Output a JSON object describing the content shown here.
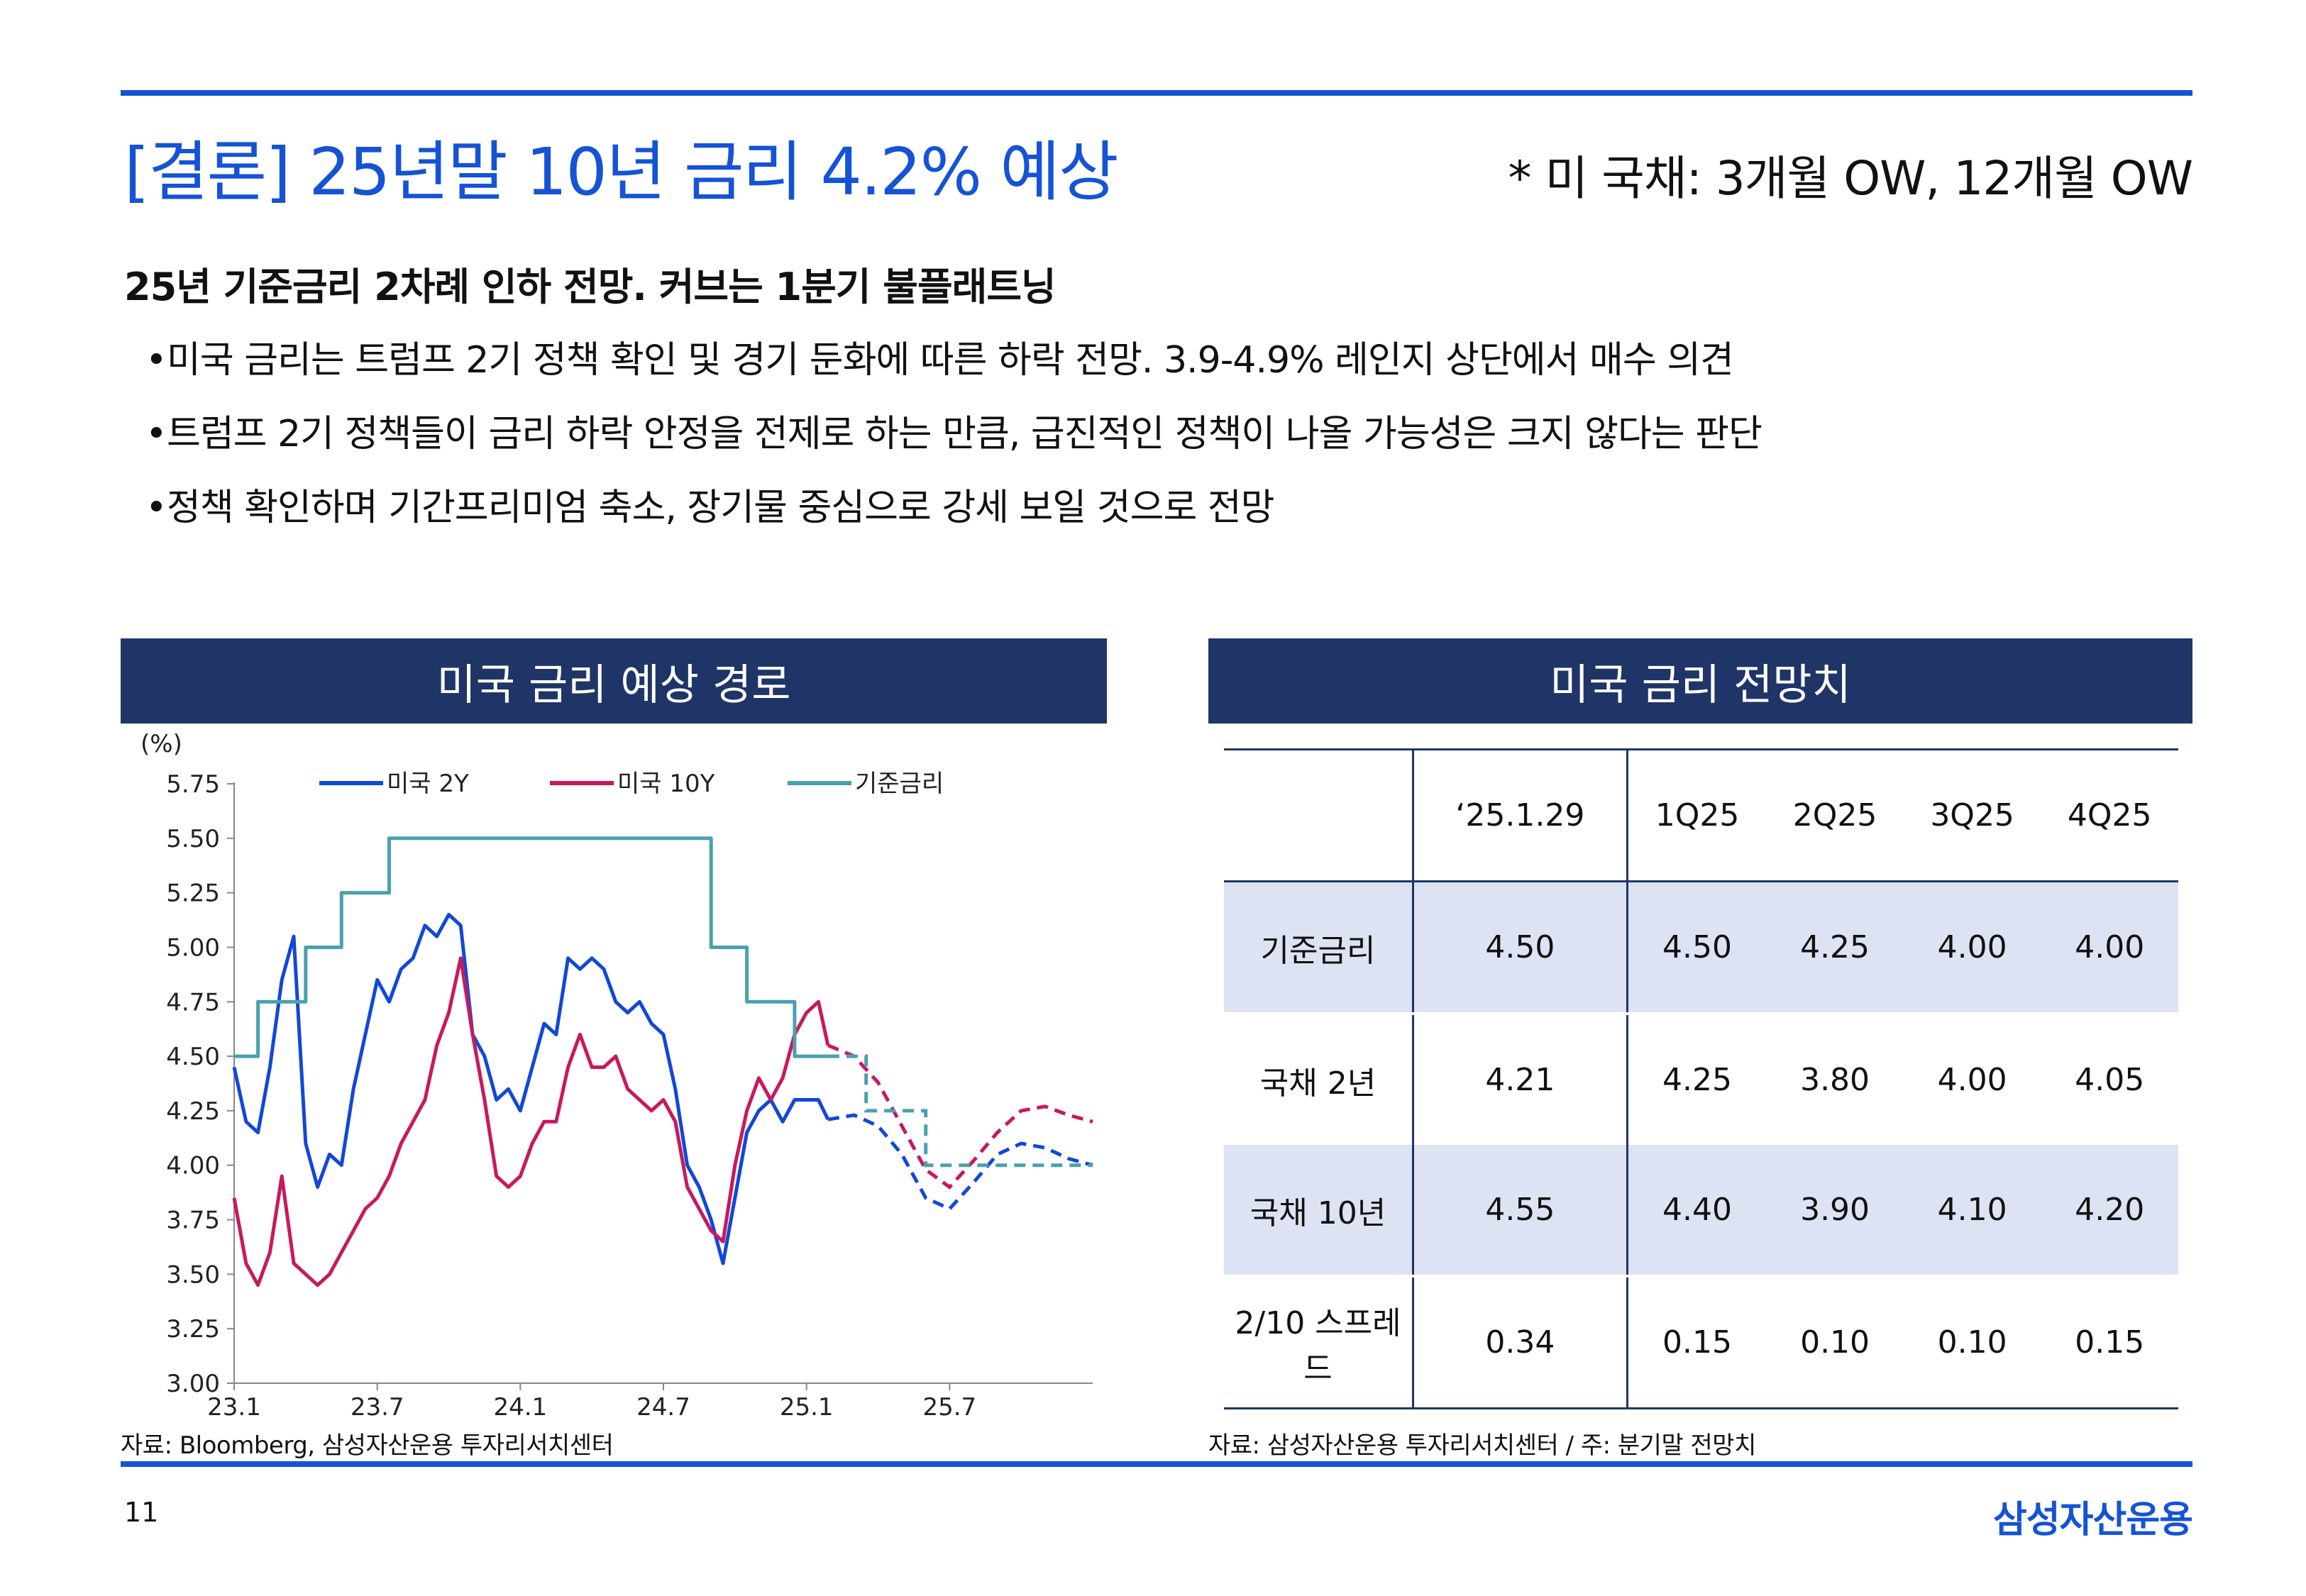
{
  "header": {
    "title": "[결론] 25년말 10년 금리 4.2% 예상",
    "note": "* 미 국채: 3개월 OW, 12개월 OW"
  },
  "summary": {
    "subtitle": "25년 기준금리 2차례 인하 전망. 커브는 1분기 불플래트닝",
    "bullets": [
      "미국 금리는 트럼프 2기 정책 확인 및 경기 둔화에 따른 하락 전망. 3.9-4.9% 레인지 상단에서 매수 의견",
      "트럼프 2기 정책들이 금리 하락 안정을 전제로 하는 만큼, 급진적인 정책이 나올 가능성은 크지 않다는 판단",
      "정책 확인하며 기간프리미엄 축소, 장기물 중심으로 강세 보일 것으로 전망"
    ],
    "bullet_symbol": "•"
  },
  "left_panel": {
    "header": "미국 금리 예상 경로",
    "source": "자료: Bloomberg, 삼성자산운용 투자리서치센터"
  },
  "right_panel": {
    "header": "미국 금리 전망치",
    "source": "자료: 삼성자산운용 투자리서치센터 / 주: 분기말 전망치",
    "table": {
      "columns": [
        "‘25.1.29",
        "1Q25",
        "2Q25",
        "3Q25",
        "4Q25"
      ],
      "rows": [
        {
          "label": "기준금리",
          "values": [
            "4.50",
            "4.50",
            "4.25",
            "4.00",
            "4.00"
          ]
        },
        {
          "label": "국채 2년",
          "values": [
            "4.21",
            "4.25",
            "3.80",
            "4.00",
            "4.05"
          ]
        },
        {
          "label": "국채 10년",
          "values": [
            "4.55",
            "4.40",
            "3.90",
            "4.10",
            "4.20"
          ]
        },
        {
          "label": "2/10 스프레드",
          "values": [
            "0.34",
            "0.15",
            "0.10",
            "0.10",
            "0.15"
          ]
        }
      ]
    }
  },
  "footer": {
    "page_number": "11",
    "logo": "삼성자산운용"
  },
  "colors": {
    "accent": "#1553d6",
    "navy": "#1f3567",
    "us2y": "#1248d8",
    "us10y": "#c8195e",
    "policy": "#4aa0b0",
    "shade": "#dde3f2"
  },
  "chart_data": {
    "type": "line",
    "title": "미국 금리 예상 경로",
    "ylabel": "(%)",
    "xlabel": "",
    "ylim": [
      3.0,
      5.75
    ],
    "yticks": [
      "5.75",
      "5.50",
      "5.25",
      "5.00",
      "4.75",
      "4.50",
      "4.25",
      "4.00",
      "3.75",
      "3.50",
      "3.25",
      "3.00"
    ],
    "x_tick_labels": [
      "23.1",
      "23.7",
      "24.1",
      "24.7",
      "25.1",
      "25.7"
    ],
    "x_tick_months": [
      0,
      6,
      12,
      18,
      24,
      30
    ],
    "xlim_months": [
      0,
      36
    ],
    "forecast_start_month": 24.9,
    "series": [
      {
        "name": "미국 2Y",
        "style": "solid-then-dashed",
        "actual": [
          [
            0,
            4.45
          ],
          [
            0.5,
            4.2
          ],
          [
            1,
            4.15
          ],
          [
            1.5,
            4.45
          ],
          [
            2,
            4.85
          ],
          [
            2.5,
            5.05
          ],
          [
            3,
            4.1
          ],
          [
            3.5,
            3.9
          ],
          [
            4,
            4.05
          ],
          [
            4.5,
            4.0
          ],
          [
            5,
            4.35
          ],
          [
            5.5,
            4.6
          ],
          [
            6,
            4.85
          ],
          [
            6.5,
            4.75
          ],
          [
            7,
            4.9
          ],
          [
            7.5,
            4.95
          ],
          [
            8,
            5.1
          ],
          [
            8.5,
            5.05
          ],
          [
            9,
            5.15
          ],
          [
            9.5,
            5.1
          ],
          [
            10,
            4.6
          ],
          [
            10.5,
            4.5
          ],
          [
            11,
            4.3
          ],
          [
            11.5,
            4.35
          ],
          [
            12,
            4.25
          ],
          [
            12.5,
            4.45
          ],
          [
            13,
            4.65
          ],
          [
            13.5,
            4.6
          ],
          [
            14,
            4.95
          ],
          [
            14.5,
            4.9
          ],
          [
            15,
            4.95
          ],
          [
            15.5,
            4.9
          ],
          [
            16,
            4.75
          ],
          [
            16.5,
            4.7
          ],
          [
            17,
            4.75
          ],
          [
            17.5,
            4.65
          ],
          [
            18,
            4.6
          ],
          [
            18.5,
            4.35
          ],
          [
            19,
            4.0
          ],
          [
            19.5,
            3.9
          ],
          [
            20,
            3.75
          ],
          [
            20.5,
            3.55
          ],
          [
            21,
            3.85
          ],
          [
            21.5,
            4.15
          ],
          [
            22,
            4.25
          ],
          [
            22.5,
            4.3
          ],
          [
            23,
            4.2
          ],
          [
            23.5,
            4.3
          ],
          [
            24,
            4.3
          ],
          [
            24.5,
            4.3
          ],
          [
            24.9,
            4.21
          ]
        ],
        "forecast": [
          [
            24.9,
            4.21
          ],
          [
            26,
            4.23
          ],
          [
            27,
            4.18
          ],
          [
            28,
            4.05
          ],
          [
            29,
            3.85
          ],
          [
            30,
            3.8
          ],
          [
            31,
            3.92
          ],
          [
            32,
            4.05
          ],
          [
            33,
            4.1
          ],
          [
            34,
            4.08
          ],
          [
            35,
            4.03
          ],
          [
            36,
            4.0
          ]
        ]
      },
      {
        "name": "미국 10Y",
        "style": "solid-then-dashed",
        "actual": [
          [
            0,
            3.85
          ],
          [
            0.5,
            3.55
          ],
          [
            1,
            3.45
          ],
          [
            1.5,
            3.6
          ],
          [
            2,
            3.95
          ],
          [
            2.5,
            3.55
          ],
          [
            3,
            3.5
          ],
          [
            3.5,
            3.45
          ],
          [
            4,
            3.5
          ],
          [
            4.5,
            3.6
          ],
          [
            5,
            3.7
          ],
          [
            5.5,
            3.8
          ],
          [
            6,
            3.85
          ],
          [
            6.5,
            3.95
          ],
          [
            7,
            4.1
          ],
          [
            7.5,
            4.2
          ],
          [
            8,
            4.3
          ],
          [
            8.5,
            4.55
          ],
          [
            9,
            4.7
          ],
          [
            9.5,
            4.95
          ],
          [
            10,
            4.6
          ],
          [
            10.5,
            4.3
          ],
          [
            11,
            3.95
          ],
          [
            11.5,
            3.9
          ],
          [
            12,
            3.95
          ],
          [
            12.5,
            4.1
          ],
          [
            13,
            4.2
          ],
          [
            13.5,
            4.2
          ],
          [
            14,
            4.45
          ],
          [
            14.5,
            4.6
          ],
          [
            15,
            4.45
          ],
          [
            15.5,
            4.45
          ],
          [
            16,
            4.5
          ],
          [
            16.5,
            4.35
          ],
          [
            17,
            4.3
          ],
          [
            17.5,
            4.25
          ],
          [
            18,
            4.3
          ],
          [
            18.5,
            4.2
          ],
          [
            19,
            3.9
          ],
          [
            19.5,
            3.8
          ],
          [
            20,
            3.7
          ],
          [
            20.5,
            3.65
          ],
          [
            21,
            4.0
          ],
          [
            21.5,
            4.25
          ],
          [
            22,
            4.4
          ],
          [
            22.5,
            4.3
          ],
          [
            23,
            4.4
          ],
          [
            23.5,
            4.6
          ],
          [
            24,
            4.7
          ],
          [
            24.5,
            4.75
          ],
          [
            24.9,
            4.55
          ]
        ],
        "forecast": [
          [
            24.9,
            4.55
          ],
          [
            26,
            4.5
          ],
          [
            27,
            4.38
          ],
          [
            28,
            4.18
          ],
          [
            29,
            3.98
          ],
          [
            30,
            3.9
          ],
          [
            31,
            4.02
          ],
          [
            32,
            4.15
          ],
          [
            33,
            4.25
          ],
          [
            34,
            4.27
          ],
          [
            35,
            4.23
          ],
          [
            36,
            4.2
          ]
        ]
      },
      {
        "name": "기준금리",
        "style": "solid-then-dashed",
        "actual": [
          [
            0,
            4.5
          ],
          [
            1,
            4.5
          ],
          [
            1,
            4.75
          ],
          [
            3,
            4.75
          ],
          [
            3,
            5.0
          ],
          [
            4.5,
            5.0
          ],
          [
            4.5,
            5.25
          ],
          [
            6.5,
            5.25
          ],
          [
            6.5,
            5.5
          ],
          [
            20,
            5.5
          ],
          [
            20,
            5.0
          ],
          [
            21.5,
            5.0
          ],
          [
            21.5,
            4.75
          ],
          [
            23.5,
            4.75
          ],
          [
            23.5,
            4.5
          ],
          [
            24.9,
            4.5
          ]
        ],
        "forecast": [
          [
            24.9,
            4.5
          ],
          [
            26.5,
            4.5
          ],
          [
            26.5,
            4.25
          ],
          [
            29,
            4.25
          ],
          [
            29,
            4.0
          ],
          [
            36,
            4.0
          ]
        ]
      }
    ],
    "legend": [
      "미국 2Y",
      "미국 10Y",
      "기준금리"
    ]
  }
}
